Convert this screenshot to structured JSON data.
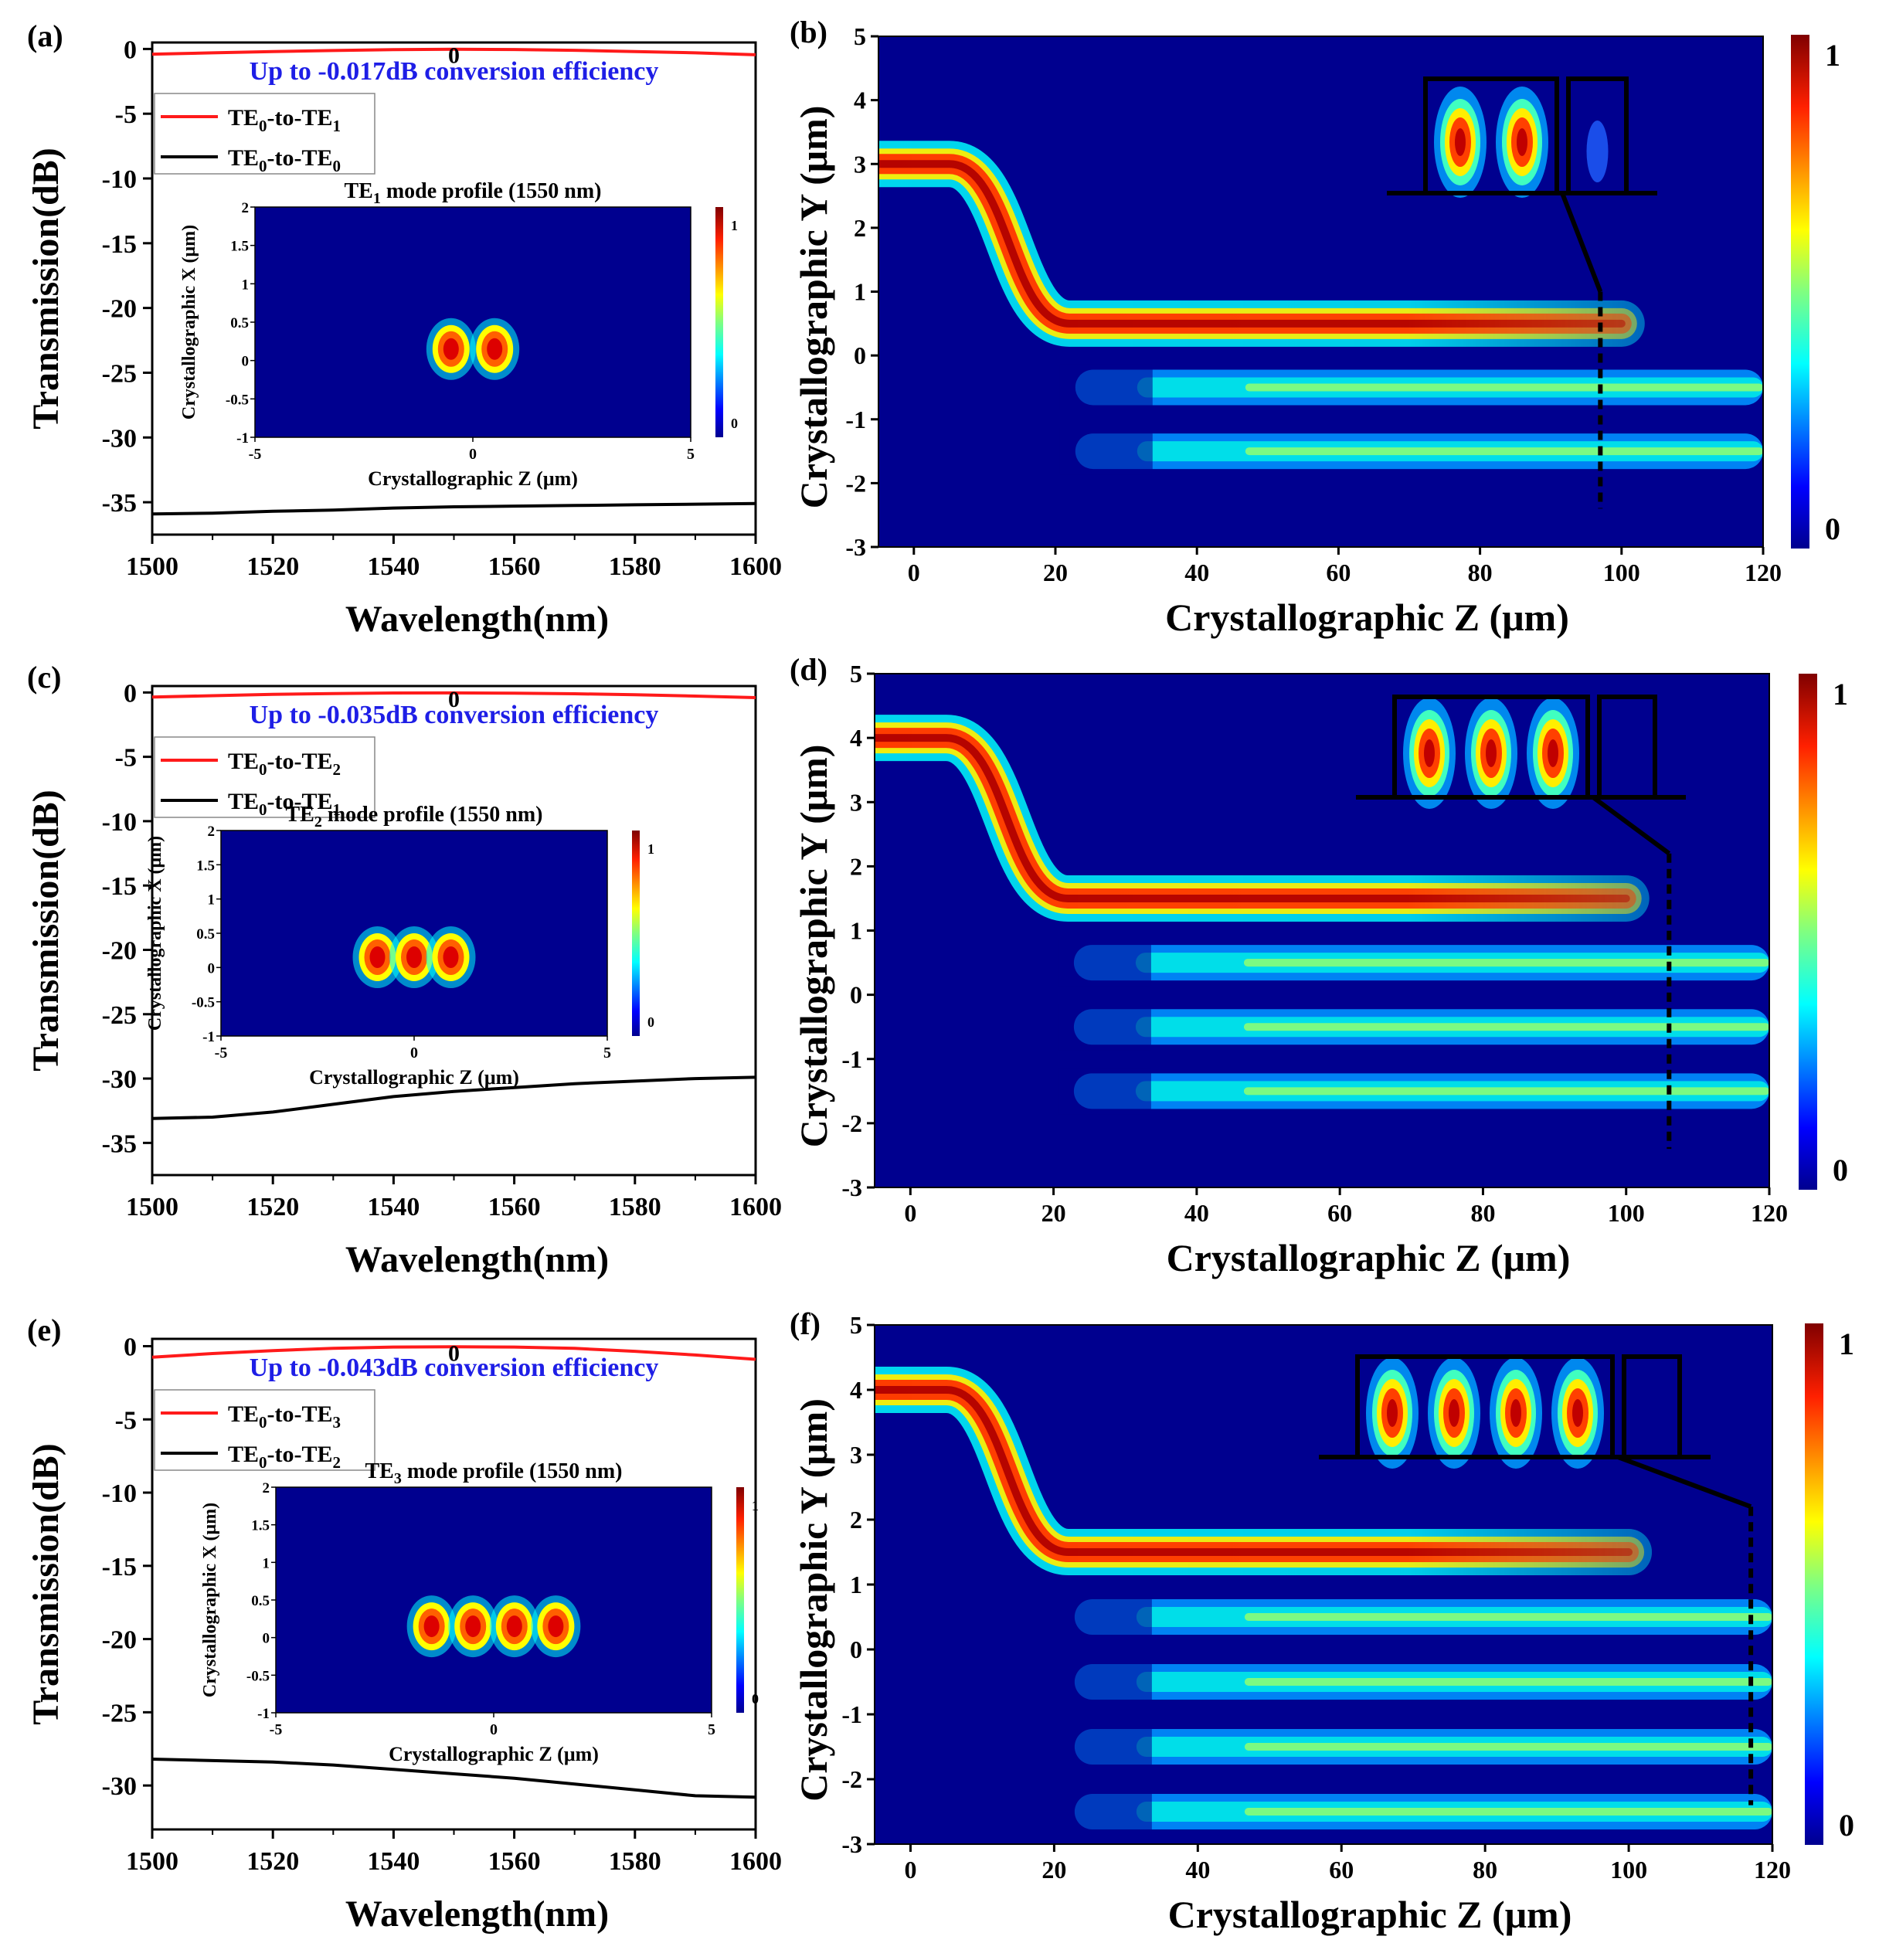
{
  "colors": {
    "red_curve": "#ff1a1a",
    "black_curve": "#000000",
    "annotation_blue": "#1e1ee6",
    "field_background": "#00008f"
  },
  "panels_left": [
    {
      "label": "(a)",
      "annotation": "Up to -0.017dB conversion efficiency",
      "legend": [
        {
          "base": "TE",
          "sub1": "0",
          "mid": "-to-TE",
          "sub2": "1",
          "color": "red"
        },
        {
          "base": "TE",
          "sub1": "0",
          "mid": "-to-TE",
          "sub2": "0",
          "color": "black"
        }
      ],
      "inset": {
        "title_base": "TE",
        "title_sub": "1",
        "title_rest": " mode profile (1550 nm)",
        "ylabel": "Crystallographic X (μm)",
        "xlabel": "Crystallographic Z (μm)",
        "xticks": [
          "-5",
          "0",
          "5"
        ],
        "yticks": [
          "2",
          "1.5",
          "1",
          "0.5",
          "0",
          "-0.5",
          "-1"
        ],
        "cbar_ticks": [
          "1",
          "0"
        ],
        "lobes": 2
      }
    },
    {
      "label": "(c)",
      "annotation": "Up to -0.035dB conversion efficiency",
      "legend": [
        {
          "base": "TE",
          "sub1": "0",
          "mid": "-to-TE",
          "sub2": "2",
          "color": "red"
        },
        {
          "base": "TE",
          "sub1": "0",
          "mid": "-to-TE",
          "sub2": "1",
          "color": "black"
        }
      ],
      "inset": {
        "title_base": "TE",
        "title_sub": "2",
        "title_rest": " mode profile (1550 nm)",
        "ylabel": "Crystallographic X (μm)",
        "xlabel": "Crystallographic Z (μm)",
        "xticks": [
          "-5",
          "0",
          "5"
        ],
        "yticks": [
          "2",
          "1.5",
          "1",
          "0.5",
          "0",
          "-0.5",
          "-1"
        ],
        "cbar_ticks": [
          "1",
          "0"
        ],
        "lobes": 3
      }
    },
    {
      "label": "(e)",
      "annotation": "Up to -0.043dB conversion efficiency",
      "legend": [
        {
          "base": "TE",
          "sub1": "0",
          "mid": "-to-TE",
          "sub2": "3",
          "color": "red"
        },
        {
          "base": "TE",
          "sub1": "0",
          "mid": "-to-TE",
          "sub2": "2",
          "color": "black"
        }
      ],
      "inset": {
        "title_base": "TE",
        "title_sub": "3",
        "title_rest": " mode profile (1550 nm)",
        "ylabel": "Crystallographic X (μm)",
        "xlabel": "Crystallographic Z (μm)",
        "xticks": [
          "-5",
          "0",
          "5"
        ],
        "yticks": [
          "2",
          "1.5",
          "1",
          "0.5",
          "0",
          "-0.5",
          "-1"
        ],
        "cbar_ticks": [
          "1",
          "0"
        ],
        "lobes": 4
      }
    }
  ],
  "panels_right": [
    {
      "label": "(b)",
      "xlabel": "Crystallographic Z (μm)",
      "ylabel": "Crystallographic Y (μm)",
      "cbar_ticks": [
        "1",
        "0"
      ]
    },
    {
      "label": "(d)",
      "xlabel": "Crystallographic Z (μm)",
      "ylabel": "Crystallographic Y (μm)",
      "cbar_ticks": [
        "1",
        "0"
      ]
    },
    {
      "label": "(f)",
      "xlabel": "Crystallographic Z (μm)",
      "ylabel": "Crystallographic Y (μm)",
      "cbar_ticks": [
        "1",
        "0"
      ]
    }
  ],
  "chart_data": [
    {
      "panel": "(a)",
      "type": "line",
      "xlabel": "Wavelength(nm)",
      "ylabel": "Transmission(dB)",
      "xlim": [
        1500,
        1600
      ],
      "ylim": [
        -37.5,
        0.5
      ],
      "xticks": [
        1500,
        1520,
        1540,
        1560,
        1580,
        1600
      ],
      "yticks": [
        0,
        -5,
        -10,
        -15,
        -20,
        -25,
        -30,
        -35
      ],
      "x": [
        1500,
        1510,
        1520,
        1530,
        1540,
        1550,
        1560,
        1570,
        1580,
        1590,
        1600
      ],
      "series": [
        {
          "name": "TE0-to-TE1",
          "color": "red",
          "values": [
            -0.4,
            -0.3,
            -0.2,
            -0.12,
            -0.05,
            -0.017,
            -0.04,
            -0.1,
            -0.2,
            -0.3,
            -0.45
          ]
        },
        {
          "name": "TE0-to-TE0",
          "color": "black",
          "values": [
            -35.9,
            -35.85,
            -35.7,
            -35.6,
            -35.45,
            -35.35,
            -35.3,
            -35.25,
            -35.2,
            -35.15,
            -35.1
          ]
        }
      ]
    },
    {
      "panel": "(c)",
      "type": "line",
      "xlabel": "Wavelength(nm)",
      "ylabel": "Transmission(dB)",
      "xlim": [
        1500,
        1600
      ],
      "ylim": [
        -37.5,
        0.5
      ],
      "xticks": [
        1500,
        1520,
        1540,
        1560,
        1580,
        1600
      ],
      "yticks": [
        0,
        -5,
        -10,
        -15,
        -20,
        -25,
        -30,
        -35
      ],
      "x": [
        1500,
        1510,
        1520,
        1530,
        1540,
        1550,
        1560,
        1570,
        1580,
        1590,
        1600
      ],
      "series": [
        {
          "name": "TE0-to-TE2",
          "color": "red",
          "values": [
            -0.35,
            -0.25,
            -0.15,
            -0.08,
            -0.04,
            -0.035,
            -0.05,
            -0.1,
            -0.18,
            -0.28,
            -0.4
          ]
        },
        {
          "name": "TE0-to-TE1",
          "color": "black",
          "values": [
            -33.1,
            -33.0,
            -32.6,
            -32.0,
            -31.4,
            -31.0,
            -30.7,
            -30.4,
            -30.2,
            -30.0,
            -29.9
          ]
        }
      ]
    },
    {
      "panel": "(e)",
      "type": "line",
      "xlabel": "Wavelength(nm)",
      "ylabel": "Transmission(dB)",
      "xlim": [
        1500,
        1600
      ],
      "ylim": [
        -33,
        0.5
      ],
      "xticks": [
        1500,
        1520,
        1540,
        1560,
        1580,
        1600
      ],
      "yticks": [
        0,
        -5,
        -10,
        -15,
        -20,
        -25,
        -30
      ],
      "x": [
        1500,
        1510,
        1520,
        1530,
        1540,
        1550,
        1560,
        1570,
        1580,
        1590,
        1600
      ],
      "series": [
        {
          "name": "TE0-to-TE3",
          "color": "red",
          "values": [
            -0.75,
            -0.5,
            -0.3,
            -0.15,
            -0.06,
            -0.043,
            -0.06,
            -0.15,
            -0.35,
            -0.6,
            -0.9
          ]
        },
        {
          "name": "TE0-to-TE2",
          "color": "black",
          "values": [
            -28.2,
            -28.3,
            -28.4,
            -28.6,
            -28.9,
            -29.2,
            -29.5,
            -29.9,
            -30.3,
            -30.7,
            -30.8
          ]
        }
      ]
    },
    {
      "panel": "(b)",
      "type": "heatmap",
      "xlabel": "Crystallographic Z (μm)",
      "ylabel": "Crystallographic Y (μm)",
      "xlim": [
        -5,
        120
      ],
      "ylim": [
        -3,
        5
      ],
      "xticks": [
        0,
        20,
        40,
        60,
        80,
        100,
        120
      ],
      "yticks": [
        5,
        4,
        3,
        2,
        1,
        0,
        -1,
        -2,
        -3
      ],
      "colorbar": [
        0,
        1
      ],
      "input_waveguide_y": 3,
      "upper_waveguide_y": 0.5,
      "output_lobes_y": [
        -0.5,
        -1.5
      ],
      "inset_lobes": 2
    },
    {
      "panel": "(d)",
      "type": "heatmap",
      "xlabel": "Crystallographic Z (μm)",
      "ylabel": "Crystallographic Y (μm)",
      "xlim": [
        -5,
        120
      ],
      "ylim": [
        -3,
        5
      ],
      "xticks": [
        0,
        20,
        40,
        60,
        80,
        100,
        120
      ],
      "yticks": [
        5,
        4,
        3,
        2,
        1,
        0,
        -1,
        -2,
        -3
      ],
      "colorbar": [
        0,
        1
      ],
      "input_waveguide_y": 4,
      "upper_waveguide_y": 1.5,
      "output_lobes_y": [
        0.5,
        -0.5,
        -1.5
      ],
      "inset_lobes": 3
    },
    {
      "panel": "(f)",
      "type": "heatmap",
      "xlabel": "Crystallographic Z (μm)",
      "ylabel": "Crystallographic Y (μm)",
      "xlim": [
        -5,
        120
      ],
      "ylim": [
        -3,
        5
      ],
      "xticks": [
        0,
        20,
        40,
        60,
        80,
        100,
        120
      ],
      "yticks": [
        5,
        4,
        3,
        2,
        1,
        0,
        -1,
        -2,
        -3
      ],
      "colorbar": [
        0,
        1
      ],
      "input_waveguide_y": 4,
      "upper_waveguide_y": 1.5,
      "output_lobes_y": [
        0.5,
        -0.5,
        -1.5,
        -2.5
      ],
      "inset_lobes": 4
    }
  ]
}
